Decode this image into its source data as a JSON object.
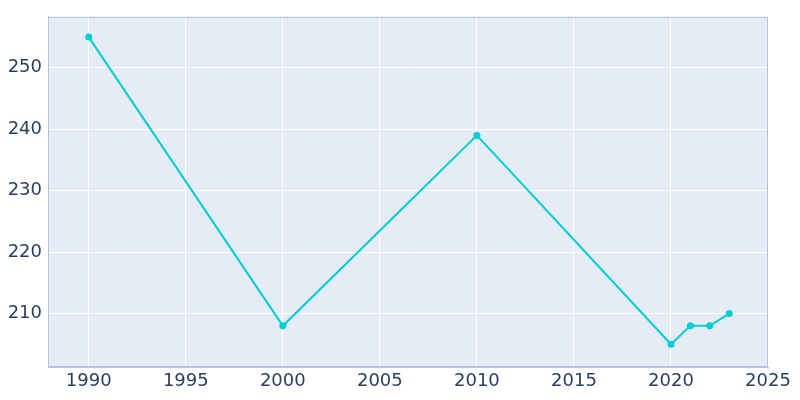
{
  "chart_data": {
    "type": "line",
    "x": [
      1990,
      2000,
      2010,
      2020,
      2021,
      2022,
      2023
    ],
    "values": [
      255,
      208,
      239,
      205,
      208,
      208,
      210
    ],
    "color": "#00CED1",
    "marker": "circle",
    "xlim": [
      1987.9,
      2025
    ],
    "xticks": [
      1990,
      1995,
      2000,
      2005,
      2010,
      2015,
      2020,
      2025
    ],
    "ylim": [
      201.3,
      258.3
    ],
    "yticks": [
      210,
      220,
      230,
      240,
      250
    ],
    "grid": true
  }
}
